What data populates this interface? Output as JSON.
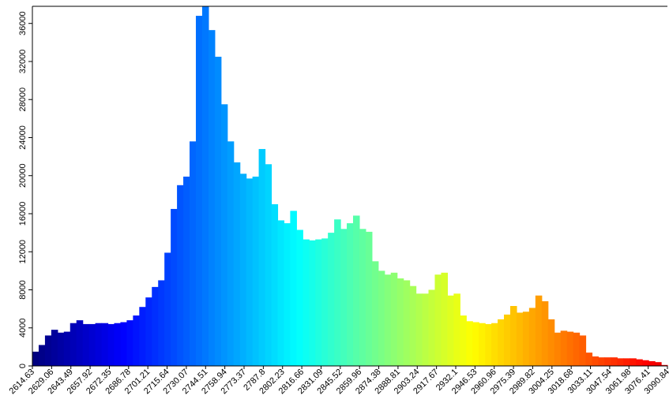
{
  "chart_data": {
    "type": "bar",
    "title": "",
    "xlabel": "",
    "ylabel": "",
    "ylim": [
      0,
      37800
    ],
    "yticks": [
      0,
      4000,
      8000,
      12000,
      16000,
      20000,
      24000,
      28000,
      32000,
      36000
    ],
    "xlim": [
      2614.63,
      3090.84
    ],
    "bin_width": 3.6077,
    "xtick_labels": [
      "2614.63",
      "2629.06",
      "2643.49",
      "2657.92",
      "2672.35",
      "2686.78",
      "2701.21",
      "2715.64",
      "2730.07",
      "2744.51",
      "2758.94",
      "2773.37",
      "2787.8",
      "2802.23",
      "2816.66",
      "2831.09",
      "2845.52",
      "2859.96",
      "2874.38",
      "2888.81",
      "2903.24",
      "2917.67",
      "2932.1",
      "2946.53",
      "2960.96",
      "2975.39",
      "2989.82",
      "3004.25",
      "3018.68",
      "3033.11",
      "3047.54",
      "3061.98",
      "3076.41",
      "3090.84"
    ],
    "grid": false,
    "legend": "none",
    "colormap": "jet",
    "values": [
      1500,
      2200,
      3200,
      3800,
      3500,
      3600,
      4500,
      4800,
      4400,
      4400,
      4500,
      4500,
      4400,
      4500,
      4600,
      4800,
      5300,
      6200,
      7200,
      8300,
      9000,
      11900,
      16500,
      19000,
      19900,
      23600,
      36800,
      37800,
      35300,
      32500,
      27500,
      23600,
      21400,
      20200,
      19700,
      19900,
      22800,
      21200,
      17000,
      15300,
      15000,
      16300,
      14300,
      13300,
      13200,
      13300,
      13400,
      14000,
      15400,
      14400,
      15000,
      15800,
      14400,
      14100,
      11000,
      10000,
      9600,
      9800,
      9200,
      9000,
      8400,
      7600,
      7600,
      8000,
      9600,
      9800,
      7400,
      7600,
      5300,
      4700,
      4600,
      4500,
      4400,
      4500,
      4900,
      5400,
      6300,
      5600,
      5700,
      6100,
      7400,
      6800,
      4900,
      3500,
      3700,
      3600,
      3500,
      3200,
      1400,
      1000,
      900,
      900,
      900,
      800,
      800,
      800,
      700,
      600,
      500,
      400,
      100
    ]
  }
}
